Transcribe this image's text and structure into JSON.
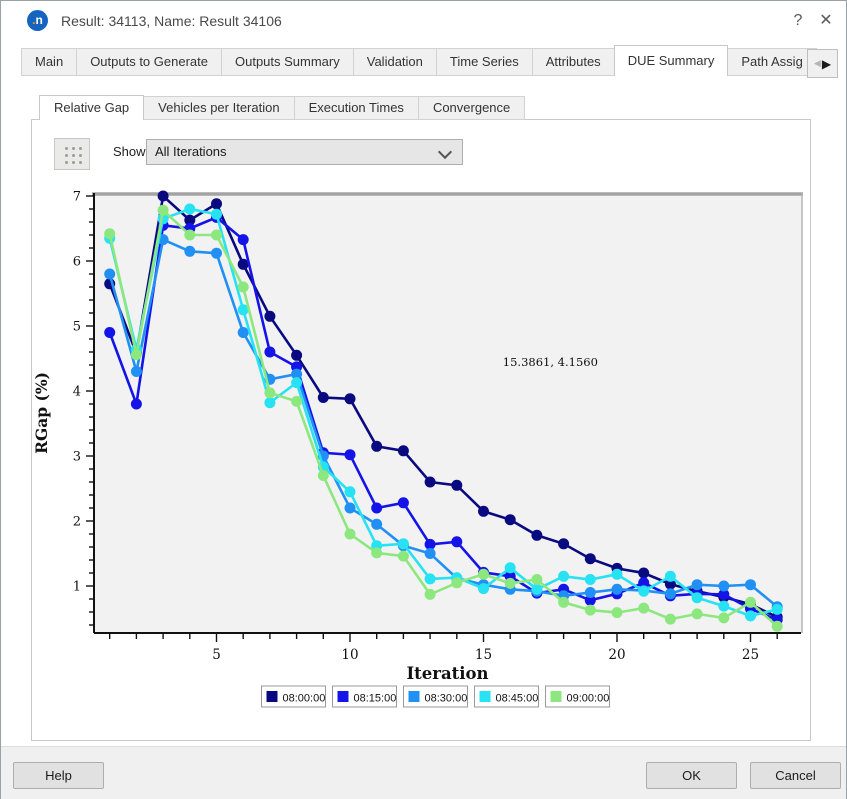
{
  "window": {
    "title": "Result: 34113, Name: Result 34106",
    "icon_dot": ".",
    "icon_letter": "n",
    "help_glyph": "?",
    "close_glyph": "✕"
  },
  "main_tabs": {
    "items": [
      {
        "label": "Main"
      },
      {
        "label": "Outputs to Generate"
      },
      {
        "label": "Outputs Summary"
      },
      {
        "label": "Validation"
      },
      {
        "label": "Time Series"
      },
      {
        "label": "Attributes"
      },
      {
        "label": "DUE Summary",
        "selected": true
      },
      {
        "label": "Path Assig"
      }
    ],
    "scroll_left_glyph": "◀",
    "scroll_right_glyph": "▶"
  },
  "sub_tabs": {
    "items": [
      {
        "label": "Relative Gap",
        "selected": true
      },
      {
        "label": "Vehicles per Iteration"
      },
      {
        "label": "Execution Times"
      },
      {
        "label": "Convergence"
      }
    ]
  },
  "controls": {
    "show_label": "Show:",
    "show_value": "All Iterations"
  },
  "chart_data": {
    "type": "line",
    "title": "",
    "xlabel": "Iteration",
    "ylabel": "RGap (%)",
    "x": [
      1,
      2,
      3,
      4,
      5,
      6,
      7,
      8,
      9,
      10,
      11,
      12,
      13,
      14,
      15,
      16,
      17,
      18,
      19,
      20,
      21,
      22,
      23,
      24,
      25,
      26
    ],
    "xlim": [
      0.41,
      26.9
    ],
    "ylim": [
      0.28,
      7.05
    ],
    "xticks_labeled": [
      5,
      10,
      15,
      20,
      25
    ],
    "yticks_labeled": [
      1,
      2,
      3,
      4,
      5,
      6,
      7
    ],
    "y_minor_step": 0.2,
    "grid": false,
    "legend_position": "bottom",
    "plot_bg": "#f2f2f2",
    "series": [
      {
        "name": "08:00:00",
        "color": "#0a0a80",
        "values": [
          5.65,
          4.58,
          7.0,
          6.63,
          6.88,
          5.95,
          5.15,
          4.55,
          3.9,
          3.88,
          3.15,
          3.08,
          2.6,
          2.55,
          2.15,
          2.02,
          1.78,
          1.65,
          1.42,
          1.27,
          1.2,
          1.03,
          0.92,
          0.83,
          0.72,
          0.52
        ]
      },
      {
        "name": "08:15:00",
        "color": "#1414e8",
        "values": [
          4.9,
          3.8,
          6.55,
          6.5,
          6.67,
          6.33,
          4.6,
          4.37,
          3.05,
          3.02,
          2.2,
          2.28,
          1.64,
          1.68,
          1.21,
          1.15,
          0.89,
          0.95,
          0.78,
          0.88,
          1.05,
          0.85,
          0.88,
          0.87,
          0.65,
          0.48
        ]
      },
      {
        "name": "08:30:00",
        "color": "#2090f5",
        "values": [
          5.8,
          4.3,
          6.33,
          6.15,
          6.12,
          4.9,
          4.18,
          4.26,
          3.0,
          2.2,
          1.95,
          1.62,
          1.5,
          1.12,
          1.02,
          0.95,
          0.92,
          0.85,
          0.9,
          0.95,
          0.93,
          0.88,
          1.02,
          1.0,
          1.02,
          0.68
        ]
      },
      {
        "name": "08:45:00",
        "color": "#26e2f2",
        "values": [
          6.35,
          4.64,
          6.65,
          6.8,
          6.72,
          5.25,
          3.82,
          4.13,
          2.83,
          2.45,
          1.62,
          1.65,
          1.11,
          1.13,
          0.96,
          1.28,
          0.95,
          1.15,
          1.1,
          1.18,
          0.92,
          1.15,
          0.82,
          0.69,
          0.54,
          0.64
        ]
      },
      {
        "name": "09:00:00",
        "color": "#8ce87e",
        "values": [
          6.42,
          4.56,
          6.78,
          6.4,
          6.4,
          5.6,
          3.97,
          3.84,
          2.7,
          1.8,
          1.51,
          1.46,
          0.87,
          1.05,
          1.18,
          1.04,
          1.1,
          0.75,
          0.63,
          0.59,
          0.66,
          0.49,
          0.57,
          0.51,
          0.75,
          0.38
        ]
      }
    ],
    "annotation": {
      "text": "15.3861, 4.1560",
      "x": 15.3861,
      "y": 4.156
    }
  },
  "footer": {
    "help_label": "Help",
    "ok_label": "OK",
    "cancel_label": "Cancel"
  }
}
